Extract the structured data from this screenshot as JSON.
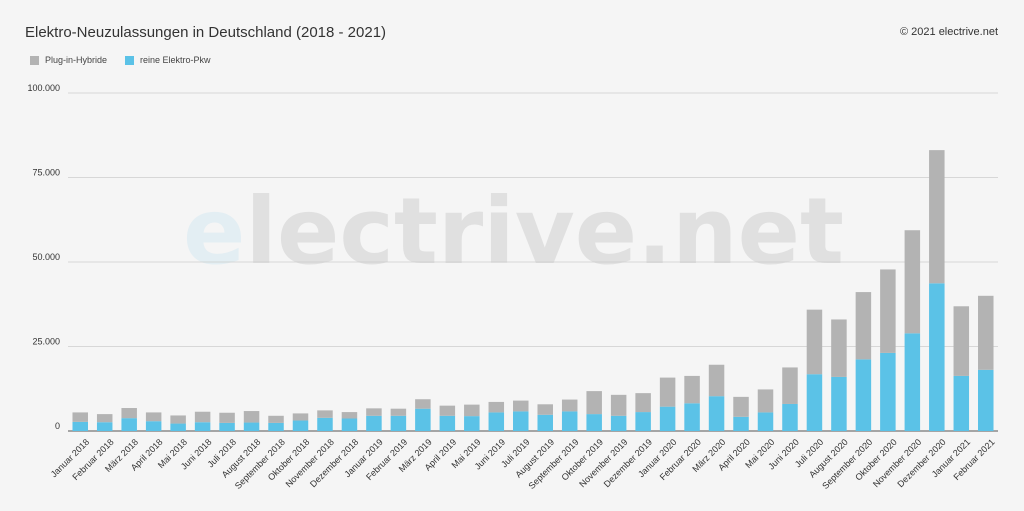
{
  "title": "Elektro-Neuzulassungen in Deutschland (2018 - 2021)",
  "copyright": "© 2021 electrive.net",
  "watermark": {
    "first": "e",
    "rest": "lectrive.net"
  },
  "colors": {
    "phev": "#b3b3b3",
    "bev": "#5bc2e7"
  },
  "chart_data": {
    "type": "bar",
    "stacked": true,
    "title": "Elektro-Neuzulassungen in Deutschland (2018 - 2021)",
    "xlabel": "",
    "ylabel": "",
    "ylim": [
      0,
      100000
    ],
    "yticks": [
      "0",
      "25.000",
      "50.000",
      "75.000",
      "100.000"
    ],
    "ytick_values": [
      0,
      25000,
      50000,
      75000,
      100000
    ],
    "grid": true,
    "legend": "top-left",
    "categories": [
      "Januar 2018",
      "Februar 2018",
      "März 2018",
      "April 2018",
      "Mai 2018",
      "Juni 2018",
      "Juli 2018",
      "August 2018",
      "September 2018",
      "Oktober 2018",
      "November 2018",
      "Dezember 2018",
      "Januar 2019",
      "Februar 2019",
      "März 2019",
      "April 2019",
      "Mai 2019",
      "Juni 2019",
      "Juli 2019",
      "August 2019",
      "September 2019",
      "Oktober 2019",
      "November 2019",
      "Dezember 2019",
      "Januar 2020",
      "Februar 2020",
      "März 2020",
      "April 2020",
      "Mai 2020",
      "Juni 2020",
      "Juli 2020",
      "August 2020",
      "September 2020",
      "Oktober 2020",
      "November 2020",
      "Dezember 2020",
      "Januar 2021",
      "Februar 2021"
    ],
    "series": [
      {
        "name": "reine Elektro-Pkw",
        "values": [
          2700,
          2600,
          3800,
          2900,
          2200,
          2600,
          2400,
          2500,
          2400,
          3100,
          3900,
          3700,
          4500,
          4500,
          6600,
          4500,
          4400,
          5500,
          5800,
          4800,
          5800,
          5000,
          4500,
          5600,
          7200,
          8200,
          10300,
          4200,
          5500,
          8000,
          16800,
          16000,
          21200,
          23100,
          28900,
          43700,
          16300,
          18100
        ]
      },
      {
        "name": "Plug-in-Hybride",
        "values": [
          2800,
          2400,
          3000,
          2600,
          2400,
          3100,
          3000,
          3400,
          2100,
          2100,
          2200,
          1900,
          2200,
          2100,
          2800,
          3000,
          3400,
          3100,
          3200,
          3100,
          3500,
          6800,
          6200,
          5600,
          8600,
          8100,
          9300,
          5900,
          6800,
          10800,
          19100,
          17000,
          19900,
          24700,
          30500,
          39400,
          20600,
          21900
        ]
      }
    ]
  },
  "legend_items": [
    {
      "label": "Plug-in-Hybride",
      "color": "#b3b3b3"
    },
    {
      "label": "reine Elektro-Pkw",
      "color": "#5bc2e7"
    }
  ]
}
